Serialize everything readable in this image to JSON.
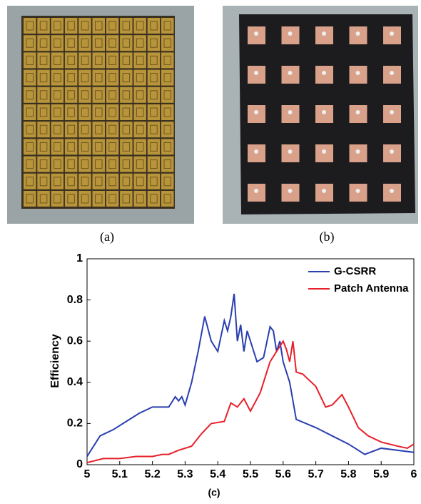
{
  "captions": [
    "(a)",
    "(b)"
  ],
  "chart_data": {
    "type": "line",
    "caption": "(c)",
    "y_label": "Efficiency",
    "xlim": [
      5,
      6
    ],
    "xticks": [
      5,
      5.1,
      5.2,
      5.3,
      5.4,
      5.5,
      5.6,
      5.7,
      5.8,
      5.9,
      6
    ],
    "ylim": [
      0,
      1
    ],
    "yticks": [
      0,
      0.2,
      0.4,
      0.6,
      0.8,
      1
    ],
    "grid": false,
    "legend": "top-right",
    "series": [
      {
        "name": "G-CSRR",
        "color": "#2a3fb0",
        "x": [
          5.0,
          5.02,
          5.04,
          5.08,
          5.12,
          5.16,
          5.2,
          5.25,
          5.27,
          5.28,
          5.29,
          5.3,
          5.32,
          5.34,
          5.36,
          5.38,
          5.4,
          5.42,
          5.43,
          5.44,
          5.45,
          5.46,
          5.47,
          5.48,
          5.49,
          5.5,
          5.52,
          5.54,
          5.56,
          5.57,
          5.58,
          5.59,
          5.6,
          5.62,
          5.64,
          5.7,
          5.75,
          5.8,
          5.85,
          5.9,
          6.0
        ],
        "values": [
          0.04,
          0.09,
          0.14,
          0.17,
          0.21,
          0.25,
          0.28,
          0.28,
          0.33,
          0.31,
          0.33,
          0.29,
          0.4,
          0.55,
          0.72,
          0.6,
          0.55,
          0.7,
          0.65,
          0.72,
          0.83,
          0.6,
          0.68,
          0.55,
          0.65,
          0.6,
          0.5,
          0.52,
          0.67,
          0.65,
          0.55,
          0.6,
          0.5,
          0.4,
          0.22,
          0.18,
          0.14,
          0.1,
          0.05,
          0.08,
          0.06
        ]
      },
      {
        "name": "Patch Antenna",
        "color": "#e8202a",
        "x": [
          5.0,
          5.05,
          5.1,
          5.15,
          5.2,
          5.23,
          5.25,
          5.28,
          5.32,
          5.35,
          5.38,
          5.42,
          5.44,
          5.46,
          5.48,
          5.5,
          5.53,
          5.56,
          5.58,
          5.6,
          5.61,
          5.62,
          5.63,
          5.64,
          5.66,
          5.7,
          5.73,
          5.75,
          5.78,
          5.8,
          5.83,
          5.86,
          5.9,
          5.95,
          5.98,
          6.0
        ],
        "values": [
          0.01,
          0.03,
          0.03,
          0.04,
          0.04,
          0.05,
          0.05,
          0.07,
          0.09,
          0.15,
          0.2,
          0.21,
          0.3,
          0.28,
          0.32,
          0.26,
          0.35,
          0.5,
          0.55,
          0.6,
          0.56,
          0.5,
          0.6,
          0.45,
          0.44,
          0.38,
          0.28,
          0.29,
          0.34,
          0.28,
          0.18,
          0.14,
          0.11,
          0.09,
          0.08,
          0.1
        ]
      }
    ]
  }
}
